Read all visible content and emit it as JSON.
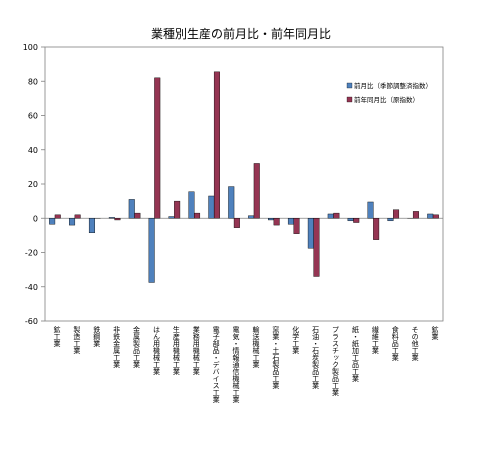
{
  "chart_data": {
    "type": "bar",
    "title": "業種別生産の前月比・前年同月比",
    "xlabel": "",
    "ylabel": "",
    "ylim": [
      -60,
      100
    ],
    "yticks": [
      -60,
      -40,
      -20,
      0,
      20,
      40,
      60,
      80,
      100
    ],
    "grid": false,
    "legend_position": "top-right",
    "categories": [
      "鉱工業",
      "製造工業",
      "鉄鋼業",
      "非鉄金属工業",
      "金属製品工業",
      "はん用機械工業",
      "生産用機械工業",
      "業務用機械工業",
      "電子部品・デバイス工業",
      "電気・情報通信機械工業",
      "輸送機械工業",
      "窯業・土石製品工業",
      "化学工業",
      "石油・石炭製品工業",
      "プラスチック製品工業",
      "紙・紙加工品工業",
      "繊維工業",
      "食料品工業",
      "その他工業",
      "鉱業"
    ],
    "series": [
      {
        "name": "前月比（季節調整済指数）",
        "color": "#4f81bd",
        "values": [
          -3.5,
          -4,
          -8.5,
          0.5,
          11,
          -37.5,
          1,
          15.5,
          13,
          18.5,
          1.5,
          -1,
          -3.5,
          -17.5,
          2.5,
          -1.5,
          9.5,
          -1.5,
          0,
          2.5
        ]
      },
      {
        "name": "前年同月比（原指数）",
        "color": "#953553",
        "values": [
          2,
          2,
          0,
          -1,
          3,
          82,
          10,
          3,
          85.5,
          -5.5,
          32,
          -4,
          -9,
          -34,
          3,
          -2.5,
          -12.5,
          5,
          4,
          2
        ]
      }
    ]
  }
}
